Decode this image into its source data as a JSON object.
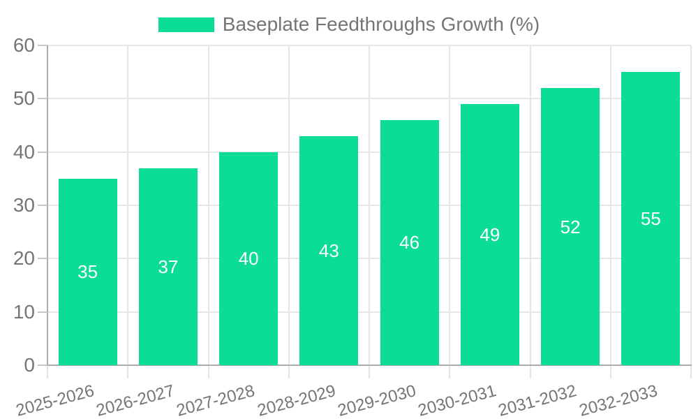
{
  "chart_data": {
    "type": "bar",
    "title": "",
    "legend_position": "top",
    "categories": [
      "2025-2026",
      "2026-2027",
      "2027-2028",
      "2028-2029",
      "2029-2030",
      "2030-2031",
      "2031-2032",
      "2032-2033"
    ],
    "series": [
      {
        "name": "Baseplate Feedthroughs Growth (%)",
        "values": [
          35,
          37,
          40,
          43,
          46,
          49,
          52,
          55
        ],
        "color": "#0bdd95"
      }
    ],
    "xlabel": "",
    "ylabel": "",
    "ylim": [
      0,
      60
    ],
    "yticks": [
      0,
      10,
      20,
      30,
      40,
      50,
      60
    ],
    "grid": true,
    "value_labels_shown": true
  },
  "colors": {
    "bar": "#0bdd95",
    "grid": "#e6e6e6",
    "axis": "#ababab",
    "ytick": "#c6c6c6",
    "xtick": "#e3e3e3",
    "text": "#757575",
    "value_label": "#ffffff",
    "background": "#ffffff"
  }
}
